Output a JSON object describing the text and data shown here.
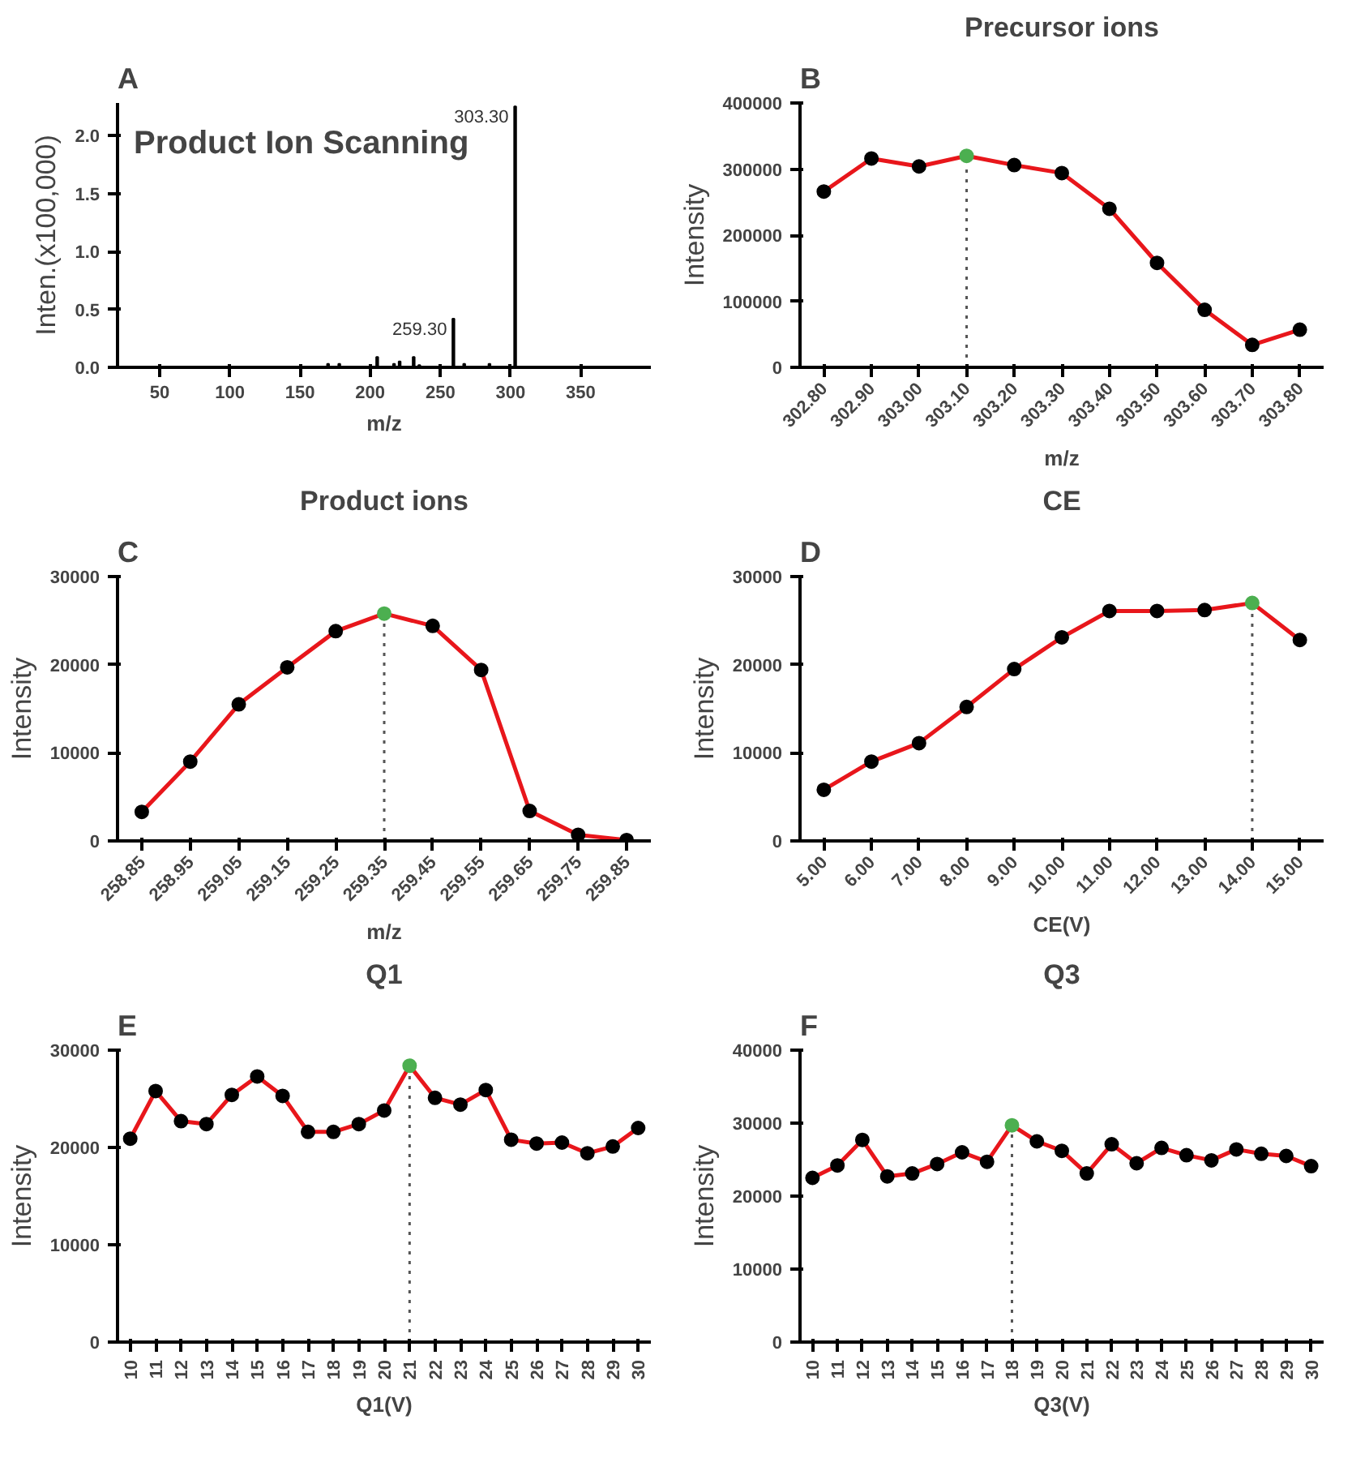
{
  "chart_data": [
    {
      "type": "bar",
      "title": "Product Ion Scanning",
      "xlabel": "m/z",
      "ylabel": "Inten.(x100,000)",
      "color": "#000000",
      "x": [
        170,
        178,
        205,
        217,
        221,
        231,
        235,
        259.3,
        267,
        285,
        303.3
      ],
      "values": [
        0.03,
        0.03,
        0.09,
        0.03,
        0.05,
        0.09,
        0.02,
        0.42,
        0.03,
        0.03,
        2.25
      ],
      "xlim": [
        20,
        400
      ],
      "xticks": [
        50,
        100,
        150,
        200,
        250,
        300,
        350
      ],
      "ylim": [
        0,
        2.28
      ],
      "yticks": [
        {
          "value": 0,
          "label": "0.0"
        },
        {
          "value": 0.5,
          "label": "0.5"
        },
        {
          "value": 1,
          "label": "1.0"
        },
        {
          "value": 1.5,
          "label": "1.5"
        },
        {
          "value": 2,
          "label": "2.0"
        }
      ],
      "annotations": [
        "A",
        {
          "text": "259.30",
          "x": 259.3,
          "y": 0.42
        },
        {
          "text": "303.30",
          "x": 303.3,
          "y": 2.25
        }
      ]
    },
    {
      "type": "line",
      "title": "Precursor ions",
      "xlabel": "m/z",
      "ylabel": "Intensity",
      "marker": "circle",
      "line_style": "solid",
      "color": "#e8161b",
      "categories": [
        "302.80",
        "302.90",
        "303.00",
        "303.10",
        "303.20",
        "303.30",
        "303.40",
        "303.50",
        "303.60",
        "303.70",
        "303.80"
      ],
      "values": [
        266000,
        316000,
        304000,
        320000,
        306000,
        294000,
        240000,
        158000,
        87000,
        34000,
        57000
      ],
      "colors": [
        "#000000",
        "#000000",
        "#000000",
        "#4caf50",
        "#000000",
        "#000000",
        "#000000",
        "#000000",
        "#000000",
        "#000000",
        "#000000"
      ],
      "ylim": [
        0,
        400000
      ],
      "yticks": [
        0,
        100000,
        200000,
        300000,
        400000
      ],
      "ref_lines": [
        {
          "axis": "x",
          "value": "303.10",
          "line_style": "dotted",
          "color": "#555555"
        }
      ],
      "annotations": [
        "B"
      ]
    },
    {
      "type": "line",
      "title": "Product ions",
      "xlabel": "m/z",
      "ylabel": "Intensity",
      "marker": "circle",
      "line_style": "solid",
      "color": "#e8161b",
      "categories": [
        "258.85",
        "258.95",
        "259.05",
        "259.15",
        "259.25",
        "259.35",
        "259.45",
        "259.55",
        "259.65",
        "259.75",
        "259.85"
      ],
      "values": [
        3300,
        9000,
        15500,
        19700,
        23800,
        25800,
        24400,
        19400,
        3400,
        700,
        100
      ],
      "colors": [
        "#000000",
        "#000000",
        "#000000",
        "#000000",
        "#000000",
        "#4caf50",
        "#000000",
        "#000000",
        "#000000",
        "#000000",
        "#000000"
      ],
      "ylim": [
        0,
        30000
      ],
      "yticks": [
        0,
        10000,
        20000,
        30000
      ],
      "ref_lines": [
        {
          "axis": "x",
          "value": "259.35",
          "line_style": "dotted",
          "color": "#555555"
        }
      ],
      "annotations": [
        "C"
      ]
    },
    {
      "type": "line",
      "title": "CE",
      "xlabel": "CE(V)",
      "ylabel": "Intensity",
      "marker": "circle",
      "line_style": "solid",
      "color": "#e8161b",
      "categories": [
        "5.00",
        "6.00",
        "7.00",
        "8.00",
        "9.00",
        "10.00",
        "11.00",
        "12.00",
        "13.00",
        "14.00",
        "15.00"
      ],
      "values": [
        5800,
        9000,
        11100,
        15200,
        19500,
        23100,
        26100,
        26100,
        26200,
        27000,
        22800
      ],
      "colors": [
        "#000000",
        "#000000",
        "#000000",
        "#000000",
        "#000000",
        "#000000",
        "#000000",
        "#000000",
        "#000000",
        "#4caf50",
        "#000000"
      ],
      "ylim": [
        0,
        30000
      ],
      "yticks": [
        0,
        10000,
        20000,
        30000
      ],
      "ref_lines": [
        {
          "axis": "x",
          "value": "14.00",
          "line_style": "dotted",
          "color": "#555555"
        }
      ],
      "annotations": [
        "D"
      ]
    },
    {
      "type": "line",
      "title": "Q1",
      "xlabel": "Q1(V)",
      "ylabel": "Intensity",
      "marker": "circle",
      "line_style": "solid",
      "color": "#e8161b",
      "categories": [
        "10",
        "11",
        "12",
        "13",
        "14",
        "15",
        "16",
        "17",
        "18",
        "19",
        "20",
        "21",
        "22",
        "23",
        "24",
        "25",
        "26",
        "27",
        "28",
        "29",
        "30"
      ],
      "values": [
        20900,
        25800,
        22700,
        22400,
        25400,
        27300,
        25300,
        21600,
        21600,
        22400,
        23800,
        28400,
        25100,
        24400,
        25900,
        20800,
        20400,
        20500,
        19400,
        20100,
        22000
      ],
      "colors": [
        "#000000",
        "#000000",
        "#000000",
        "#000000",
        "#000000",
        "#000000",
        "#000000",
        "#000000",
        "#000000",
        "#000000",
        "#000000",
        "#4caf50",
        "#000000",
        "#000000",
        "#000000",
        "#000000",
        "#000000",
        "#000000",
        "#000000",
        "#000000",
        "#000000"
      ],
      "ylim": [
        0,
        30000
      ],
      "yticks": [
        0,
        10000,
        20000,
        30000
      ],
      "ref_lines": [
        {
          "axis": "x",
          "value": "21",
          "line_style": "dotted",
          "color": "#555555"
        }
      ],
      "annotations": [
        "E"
      ]
    },
    {
      "type": "line",
      "title": "Q3",
      "xlabel": "Q3(V)",
      "ylabel": "Intensity",
      "marker": "circle",
      "line_style": "solid",
      "color": "#e8161b",
      "categories": [
        "10",
        "11",
        "12",
        "13",
        "14",
        "15",
        "16",
        "17",
        "18",
        "19",
        "20",
        "21",
        "22",
        "23",
        "24",
        "25",
        "26",
        "27",
        "28",
        "29",
        "30"
      ],
      "values": [
        22500,
        24200,
        27700,
        22700,
        23100,
        24400,
        26000,
        24700,
        29700,
        27500,
        26200,
        23100,
        27100,
        24500,
        26600,
        25600,
        24900,
        26400,
        25800,
        25500,
        24100
      ],
      "colors": [
        "#000000",
        "#000000",
        "#000000",
        "#000000",
        "#000000",
        "#000000",
        "#000000",
        "#000000",
        "#4caf50",
        "#000000",
        "#000000",
        "#000000",
        "#000000",
        "#000000",
        "#000000",
        "#000000",
        "#000000",
        "#000000",
        "#000000",
        "#000000",
        "#000000"
      ],
      "ylim": [
        0,
        40000
      ],
      "yticks": [
        0,
        10000,
        20000,
        30000,
        40000
      ],
      "ref_lines": [
        {
          "axis": "x",
          "value": "18",
          "line_style": "dotted",
          "color": "#555555"
        }
      ],
      "annotations": [
        "F"
      ]
    }
  ]
}
